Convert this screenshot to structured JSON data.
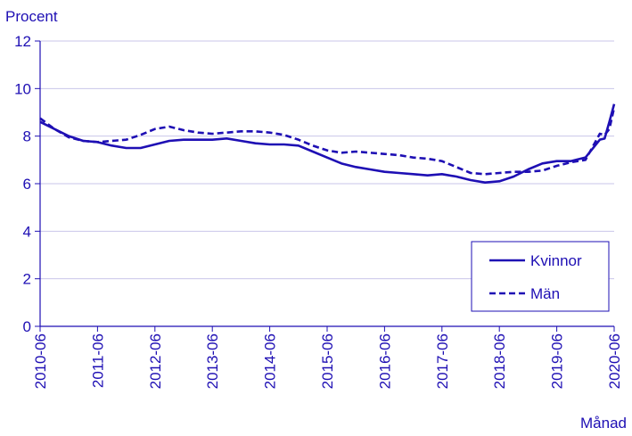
{
  "chart_data": {
    "type": "line",
    "y_label": "Procent",
    "x_label": "Månad",
    "x": [
      "2010-06",
      "2010-09",
      "2010-12",
      "2011-03",
      "2011-06",
      "2011-09",
      "2011-12",
      "2012-03",
      "2012-06",
      "2012-09",
      "2012-12",
      "2013-03",
      "2013-06",
      "2013-09",
      "2013-12",
      "2014-03",
      "2014-06",
      "2014-09",
      "2014-12",
      "2015-03",
      "2015-06",
      "2015-09",
      "2015-12",
      "2016-03",
      "2016-06",
      "2016-09",
      "2016-12",
      "2017-03",
      "2017-06",
      "2017-09",
      "2017-12",
      "2018-03",
      "2018-06",
      "2018-09",
      "2018-12",
      "2019-03",
      "2019-06",
      "2019-09",
      "2019-12",
      "2020-03",
      "2020-04",
      "2020-05",
      "2020-06"
    ],
    "series": [
      {
        "name": "Kvinnor",
        "color": "#1e0fb4",
        "dash": false,
        "values": [
          8.6,
          8.3,
          8.0,
          7.8,
          7.75,
          7.6,
          7.5,
          7.5,
          7.65,
          7.8,
          7.85,
          7.85,
          7.85,
          7.9,
          7.8,
          7.7,
          7.65,
          7.65,
          7.6,
          7.35,
          7.1,
          6.85,
          6.7,
          6.6,
          6.5,
          6.45,
          6.4,
          6.35,
          6.4,
          6.3,
          6.15,
          6.05,
          6.1,
          6.3,
          6.6,
          6.85,
          6.95,
          6.95,
          7.1,
          7.85,
          7.9,
          8.6,
          9.35
        ]
      },
      {
        "name": "Män",
        "color": "#1e0fb4",
        "dash": true,
        "values": [
          8.75,
          8.3,
          7.95,
          7.8,
          7.75,
          7.8,
          7.85,
          8.05,
          8.3,
          8.4,
          8.25,
          8.15,
          8.1,
          8.15,
          8.2,
          8.2,
          8.15,
          8.05,
          7.85,
          7.6,
          7.4,
          7.3,
          7.35,
          7.3,
          7.25,
          7.2,
          7.1,
          7.05,
          6.95,
          6.7,
          6.45,
          6.4,
          6.45,
          6.5,
          6.5,
          6.55,
          6.75,
          6.9,
          7.0,
          8.1,
          8.05,
          8.3,
          9.2
        ]
      }
    ],
    "xlim": [
      "2010-06",
      "2020-06"
    ],
    "xticks": [
      "2010-06",
      "2011-06",
      "2012-06",
      "2013-06",
      "2014-06",
      "2015-06",
      "2016-06",
      "2017-06",
      "2018-06",
      "2019-06",
      "2020-06"
    ],
    "ylim": [
      0,
      12
    ],
    "yticks": [
      0,
      2,
      4,
      6,
      8,
      10,
      12
    ],
    "grid": true,
    "legend": "lower-right"
  }
}
